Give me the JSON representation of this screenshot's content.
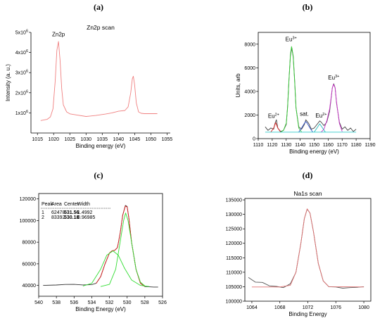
{
  "chart_data": [
    {
      "panel_label": "(a)",
      "type": "line",
      "title": "Zn2p scan",
      "xlabel": "Binding energy (eV)",
      "ylabel": "Intensity (a. u.)",
      "xlim": [
        1013,
        1056
      ],
      "ylim": [
        0,
        5000000
      ],
      "xticks": [
        "1015",
        "1020",
        "1025",
        "1030",
        "1035",
        "1040",
        "1045",
        "1050",
        "1055"
      ],
      "yticks": [
        {
          "base": "1x10",
          "exp": "6"
        },
        {
          "base": "2x10",
          "exp": "6"
        },
        {
          "base": "3x10",
          "exp": "6"
        },
        {
          "base": "4x10",
          "exp": "6"
        },
        {
          "base": "5x10",
          "exp": "6"
        }
      ],
      "annotations": [
        {
          "text": "Zn2p",
          "x": 1021.5,
          "y": 4700000
        }
      ],
      "series": [
        {
          "color": "#f08080",
          "x": [
            1016,
            1018,
            1019,
            1019.8,
            1020.5,
            1021,
            1021.5,
            1022,
            1022.5,
            1023,
            1024,
            1025,
            1027,
            1030,
            1033,
            1036,
            1038,
            1040,
            1042,
            1043,
            1043.8,
            1044.3,
            1044.6,
            1045,
            1045.5,
            1046.2,
            1047,
            1048,
            1050,
            1052
          ],
          "y": [
            620000,
            680000,
            800000,
            1200000,
            2600000,
            4100000,
            4550000,
            3600000,
            2200000,
            1400000,
            1050000,
            950000,
            900000,
            820000,
            870000,
            940000,
            1000000,
            1080000,
            1120000,
            1300000,
            2000000,
            2700000,
            2820000,
            2400000,
            1500000,
            1050000,
            980000,
            960000,
            960000,
            960000
          ]
        }
      ]
    },
    {
      "panel_label": "(b)",
      "type": "line",
      "title": "",
      "xlabel": "Binding energy (eV)",
      "ylabel": "Units, arb",
      "xlim": [
        1110,
        1190
      ],
      "ylim": [
        0,
        9000
      ],
      "xticks": [
        "1110",
        "1120",
        "1130",
        "1140",
        "1150",
        "1160",
        "1170",
        "1180",
        "1190"
      ],
      "yticks": [
        "0",
        "2000",
        "4000",
        "6000",
        "8000"
      ],
      "annotations": [
        {
          "base": "Eu",
          "sup": "2+",
          "x": 1121,
          "y": 1750
        },
        {
          "base": "Eu",
          "sup": "3+",
          "x": 1133.5,
          "y": 8250
        },
        {
          "base": "sat.",
          "sup": "",
          "x": 1143,
          "y": 1950
        },
        {
          "base": "Eu",
          "sup": "2+",
          "x": 1155,
          "y": 1800
        },
        {
          "base": "Eu",
          "sup": "3+",
          "x": 1164,
          "y": 5000
        }
      ],
      "series": [
        {
          "color": "#444444",
          "x": [
            1115,
            1117,
            1119,
            1121,
            1122,
            1123,
            1124,
            1126,
            1128,
            1130,
            1131,
            1132,
            1133,
            1134,
            1135,
            1136,
            1137,
            1139,
            1141,
            1143,
            1144,
            1146,
            1148,
            1150,
            1152,
            1154,
            1155,
            1157,
            1159,
            1161,
            1162,
            1163,
            1164,
            1165,
            1166,
            1168,
            1170,
            1172,
            1174,
            1176,
            1178,
            1180
          ],
          "y": [
            1000,
            700,
            900,
            800,
            1300,
            1600,
            900,
            600,
            700,
            1200,
            2700,
            5000,
            7000,
            7700,
            7000,
            5000,
            2600,
            1000,
            800,
            1200,
            1600,
            1300,
            800,
            900,
            1200,
            1500,
            1400,
            1100,
            1400,
            2300,
            3300,
            4300,
            4650,
            4300,
            3000,
            1400,
            800,
            1000,
            700,
            900,
            600,
            800
          ]
        },
        {
          "color": "#33cc33",
          "x": [
            1126,
            1128,
            1130,
            1131,
            1132,
            1133,
            1133.8,
            1135,
            1136,
            1137,
            1139,
            1141
          ],
          "y": [
            550,
            700,
            1300,
            2600,
            5000,
            7100,
            7800,
            6900,
            4900,
            2600,
            900,
            550
          ]
        },
        {
          "color": "#cc33cc",
          "x": [
            1155,
            1157,
            1159,
            1161,
            1162,
            1163,
            1163.8,
            1165,
            1166,
            1168,
            1170
          ],
          "y": [
            550,
            800,
            1500,
            2500,
            3400,
            4300,
            4600,
            4300,
            3100,
            1300,
            600
          ]
        },
        {
          "color": "#dd2222",
          "x": [
            1119,
            1121,
            1122.5,
            1124,
            1126
          ],
          "y": [
            550,
            900,
            1350,
            900,
            550
          ]
        },
        {
          "color": "#3355cc",
          "x": [
            1139,
            1141,
            1143,
            1144,
            1145,
            1147,
            1149
          ],
          "y": [
            550,
            900,
            1300,
            1450,
            1300,
            900,
            550
          ]
        },
        {
          "color": "#22bbbb",
          "x": [
            1150,
            1152,
            1154,
            1156,
            1158
          ],
          "y": [
            550,
            900,
            1250,
            900,
            550
          ]
        },
        {
          "color": "#33cccc",
          "x": [
            1115,
            1180
          ],
          "y": [
            550,
            550
          ]
        }
      ]
    },
    {
      "panel_label": "(c)",
      "type": "line",
      "title": "",
      "xlabel": "Binding Energy (eV)",
      "ylabel": "",
      "xlim": [
        540,
        526
      ],
      "ylim": [
        30000,
        125000
      ],
      "xticks": [
        "540",
        "538",
        "536",
        "534",
        "532",
        "530",
        "528",
        "526"
      ],
      "yticks": [
        "40000",
        "60000",
        "80000",
        "100000",
        "120000"
      ],
      "table": {
        "headers": [
          "Peak",
          "Area",
          "Center",
          "Width"
        ],
        "rows": [
          [
            "1",
            "62478",
            "531.56",
            "1.4992"
          ],
          [
            "2",
            "83392",
            "530.18",
            "0.96985"
          ]
        ]
      },
      "series": [
        {
          "color": "#333333",
          "x": [
            539.5,
            538,
            537,
            536,
            535,
            534,
            533.5,
            533,
            532.5,
            532,
            531.7,
            531.4,
            531.1,
            530.8,
            530.5,
            530.2,
            530,
            529.8,
            529.5,
            529,
            528.5,
            528,
            527,
            526.5
          ],
          "y": [
            40000,
            40400,
            40900,
            41000,
            40500,
            40800,
            42000,
            48000,
            60000,
            70000,
            72000,
            72500,
            75000,
            88000,
            105000,
            114000,
            113000,
            102000,
            80000,
            55000,
            42000,
            39000,
            38500,
            38500
          ]
        },
        {
          "color": "#dd2222",
          "x": [
            533.5,
            533,
            532.5,
            532,
            531.7,
            531.4,
            531.1,
            530.8,
            530.5,
            530.2,
            530,
            529.8,
            529.5,
            529,
            528.5,
            528
          ],
          "y": [
            42000,
            48000,
            60000,
            70000,
            72000,
            72500,
            75000,
            88000,
            105000,
            113500,
            112500,
            102000,
            80000,
            55000,
            42000,
            39000
          ]
        },
        {
          "color": "#33dd33",
          "x": [
            535,
            534,
            533,
            532.3,
            531.6,
            531,
            530.3,
            529.5,
            528.5,
            527.5
          ],
          "y": [
            39500,
            42000,
            55000,
            68000,
            72000,
            68000,
            56000,
            45000,
            40000,
            39000
          ]
        },
        {
          "color": "#33dd33",
          "x": [
            533,
            532,
            531.3,
            530.8,
            530.4,
            530.18,
            529.9,
            529.5,
            529,
            528.5,
            528
          ],
          "y": [
            39000,
            41000,
            55000,
            80000,
            100000,
            107000,
            100000,
            80000,
            55000,
            43000,
            39500
          ]
        }
      ]
    },
    {
      "panel_label": "(d)",
      "type": "line",
      "title": "Na1s scan",
      "xlabel": "Binding Energy",
      "ylabel": "",
      "xlim": [
        1063,
        1081
      ],
      "ylim": [
        100000,
        135500
      ],
      "xticks": [
        "1064",
        "1068",
        "1072",
        "1076",
        "1080"
      ],
      "yticks": [
        "100000",
        "105000",
        "110000",
        "115000",
        "120000",
        "125000",
        "130000",
        "135000"
      ],
      "series": [
        {
          "color": "#555555",
          "x": [
            1063.5,
            1064.5,
            1065.5,
            1066.5,
            1067.5,
            1068.5,
            1069.5,
            1070.3,
            1071,
            1071.5,
            1071.9,
            1072.3,
            1072.8,
            1073.5,
            1074.2,
            1075,
            1076,
            1077,
            1078,
            1079,
            1080
          ],
          "y": [
            108200,
            106600,
            106500,
            105300,
            105100,
            104700,
            106000,
            110000,
            120000,
            128500,
            131800,
            130500,
            124000,
            113000,
            107000,
            105000,
            104900,
            104500,
            104700,
            104800,
            105000
          ]
        },
        {
          "color": "#e07070",
          "x": [
            1064,
            1068,
            1069.5,
            1070.3,
            1071,
            1071.5,
            1071.9,
            1072.3,
            1072.8,
            1073.5,
            1074.2,
            1075,
            1080
          ],
          "y": [
            104900,
            104900,
            105500,
            110000,
            120000,
            128500,
            131900,
            130500,
            124000,
            113000,
            107000,
            105000,
            104900
          ]
        }
      ]
    }
  ]
}
